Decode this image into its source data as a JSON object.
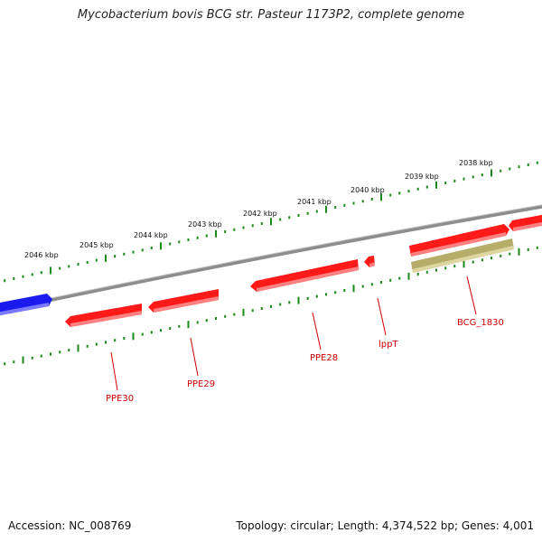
{
  "title": "Mycobacterium bovis BCG str. Pasteur 1173P2, complete genome",
  "footer": {
    "accession": "Accession: NC_008769",
    "summary": "Topology: circular; Length: 4,374,522 bp; Genes: 4,001"
  },
  "colors": {
    "forward_gene": "#ff0000",
    "other_gene": "#1a1aee",
    "pseudogene": "#b8b070",
    "backbone": "#8a8a8a",
    "ticks": "#1a8a1a",
    "label": "#cc0000"
  },
  "kbp_labels": [
    "2038 kbp",
    "2039 kbp",
    "2040 kbp",
    "2041 kbp",
    "2042 kbp",
    "2043 kbp",
    "2044 kbp",
    "2045 kbp",
    "2046 kbp"
  ],
  "genes": [
    {
      "name": "PPE30",
      "type": "cds"
    },
    {
      "name": "PPE29",
      "type": "cds"
    },
    {
      "name": "PPE28",
      "type": "cds"
    },
    {
      "name": "lppT",
      "type": "cds"
    },
    {
      "name": "BCG_1830",
      "type": "pseudogene"
    }
  ]
}
